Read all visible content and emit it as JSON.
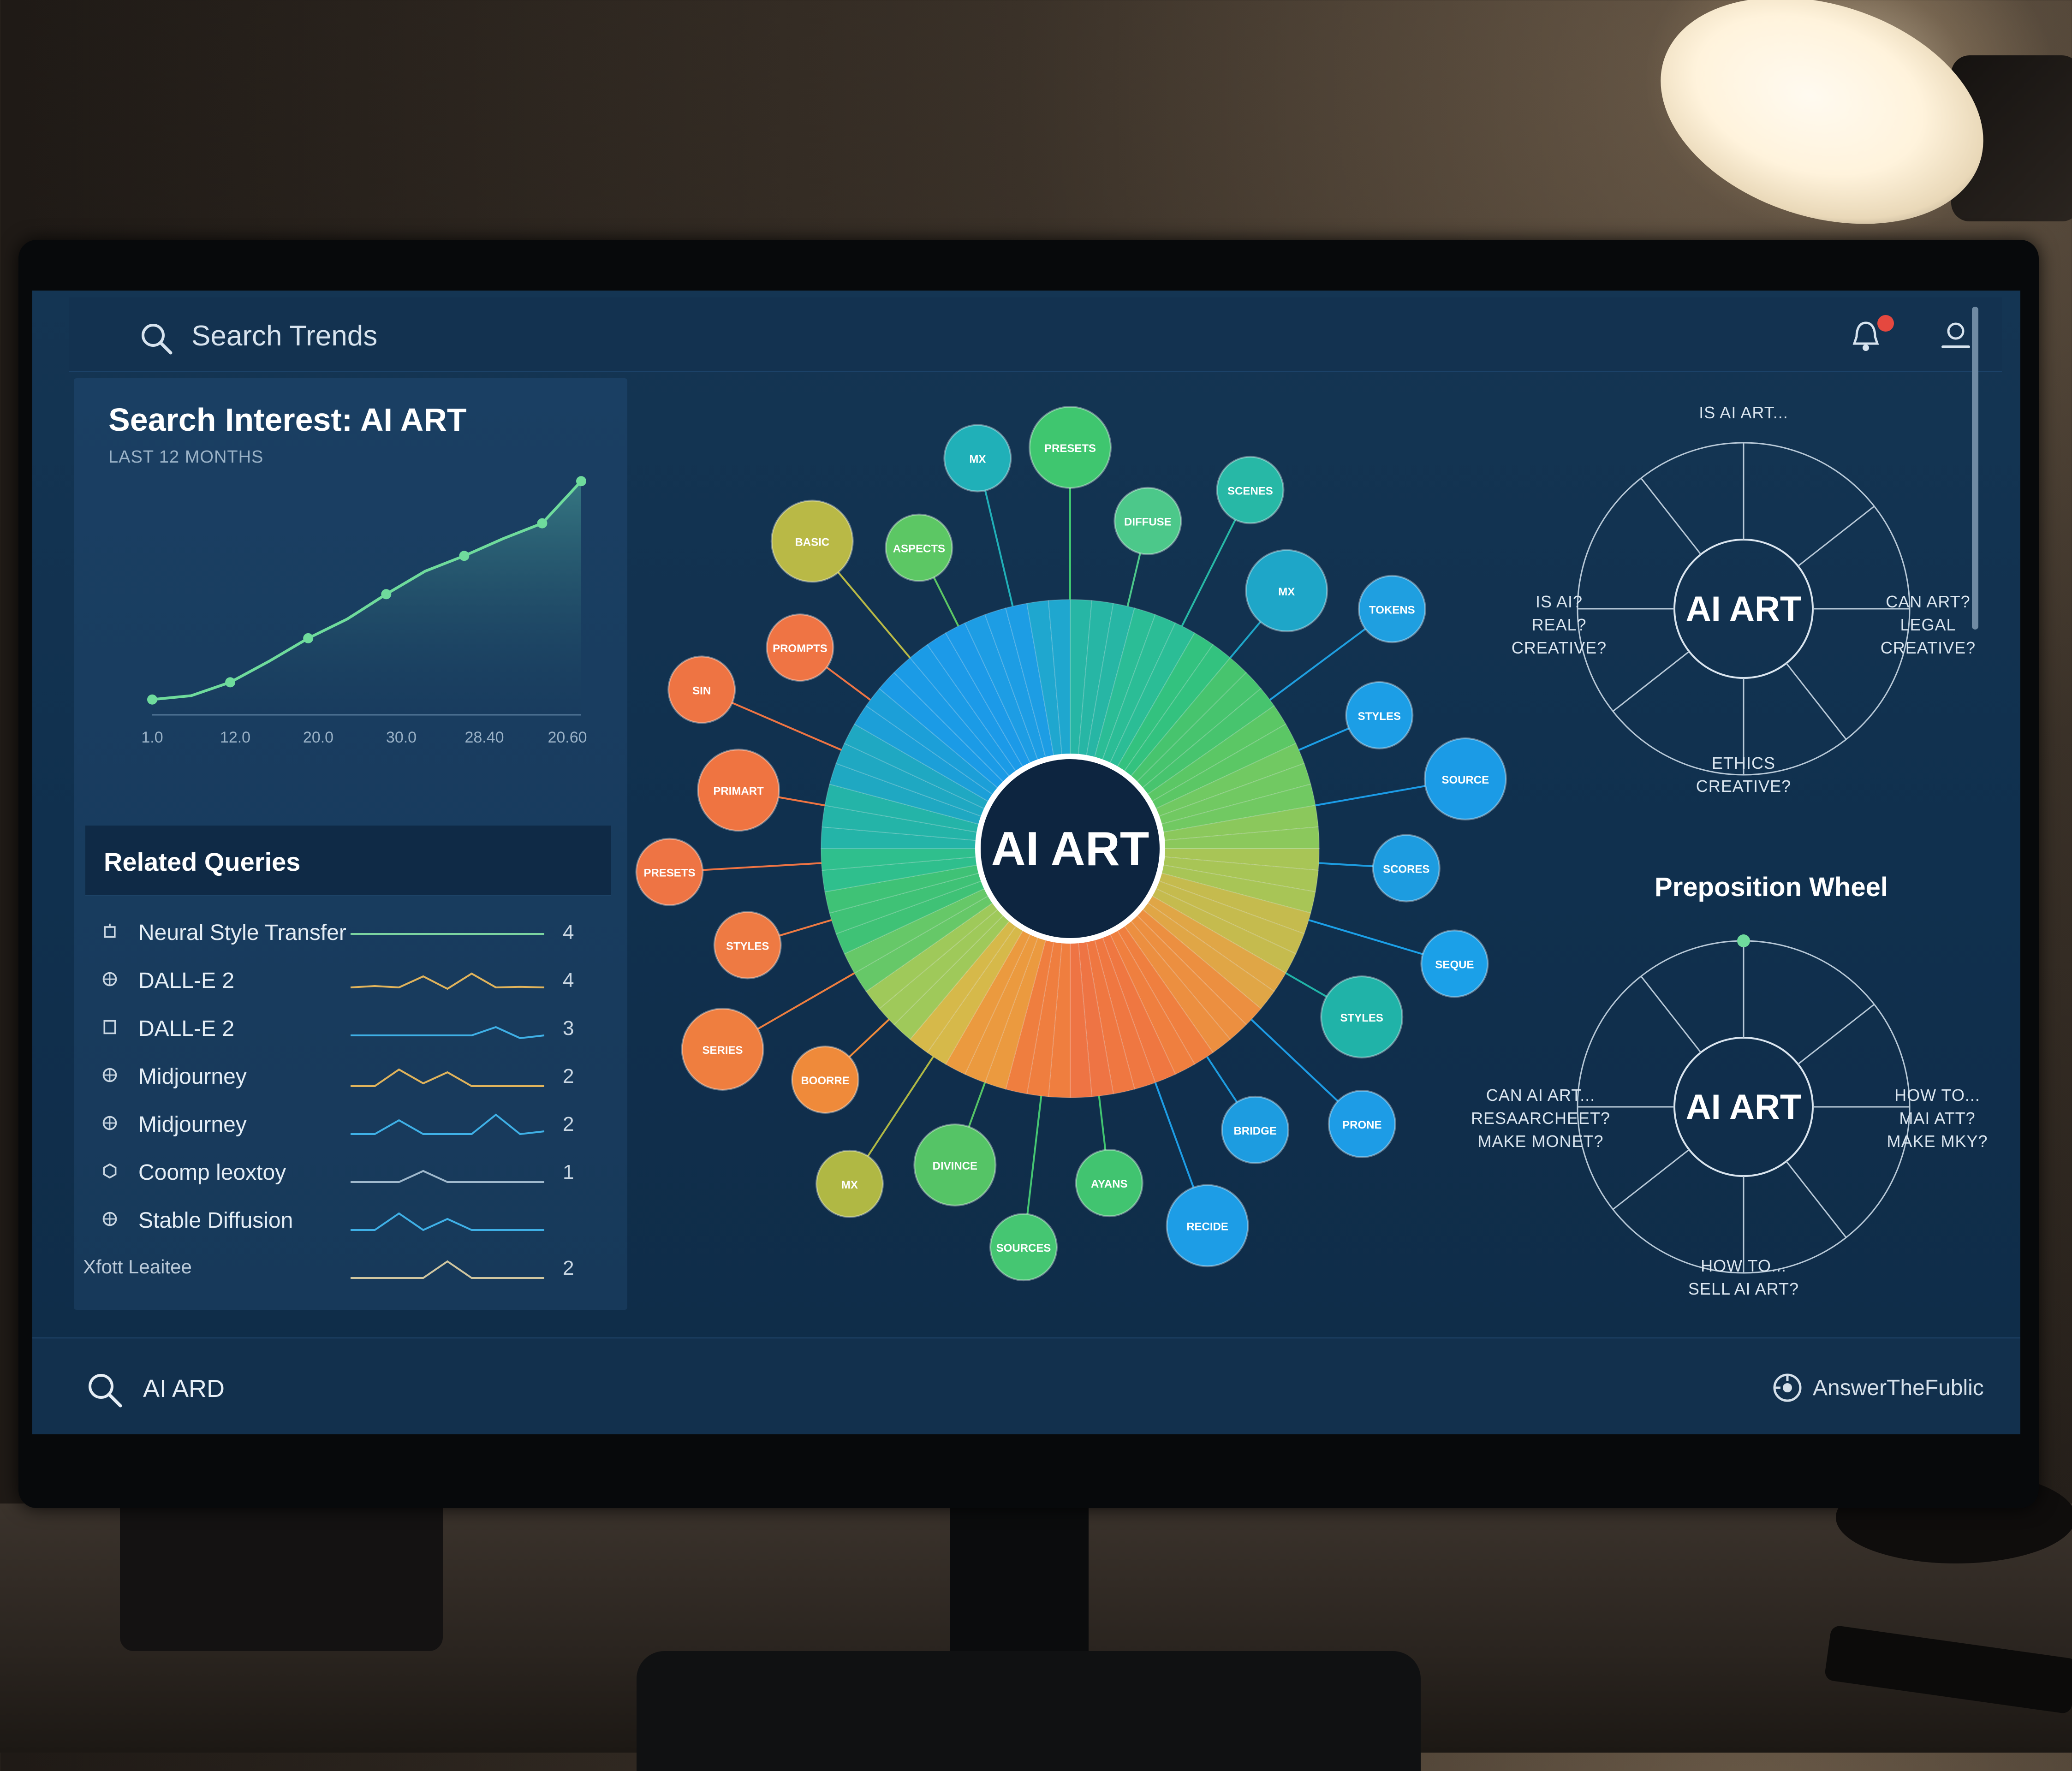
{
  "topbar": {
    "title": "Search Trends",
    "notification_icon": "bell-icon",
    "user_icon": "user-icon"
  },
  "interest_chart": {
    "title": "Search Interest: AI ART",
    "subtitle": "LAST 12 MONTHS"
  },
  "chart_data": {
    "type": "area",
    "title": "Search Interest: AI ART",
    "subtitle": "LAST 12 MONTHS",
    "xlabel": "",
    "ylabel": "",
    "x_tick_labels": [
      "1.0",
      "12.0",
      "20.0",
      "30.0",
      "28.40",
      "20.60"
    ],
    "x": [
      0,
      1,
      2,
      3,
      4,
      5,
      6,
      7,
      8,
      9,
      10,
      11
    ],
    "values": [
      8,
      10,
      17,
      28,
      40,
      50,
      63,
      75,
      83,
      92,
      100,
      122
    ],
    "ylim": [
      0,
      130
    ],
    "grid": false,
    "legend": "none",
    "line_color": "#6fdb9c"
  },
  "related_queries": {
    "title": "Related Queries",
    "items": [
      {
        "label": "Neural Style Transfer",
        "value": "4",
        "icon": "building-icon",
        "spark_color": "#7bd3a0",
        "spark": [
          0.5,
          0.5,
          0.5,
          0.5,
          0.5,
          0.5,
          0.5,
          0.5
        ]
      },
      {
        "label": "DALL-E 2",
        "value": "4",
        "icon": "globe-icon",
        "spark_color": "#e0b35b",
        "spark": [
          0.3,
          0.35,
          0.3,
          0.7,
          0.25,
          0.8,
          0.3,
          0.32,
          0.3
        ]
      },
      {
        "label": "DALL-E 2",
        "value": "3",
        "icon": "square-icon",
        "spark_color": "#3fb0e6",
        "spark": [
          0.3,
          0.3,
          0.3,
          0.3,
          0.3,
          0.3,
          0.6,
          0.2,
          0.3
        ]
      },
      {
        "label": "Midjourney",
        "value": "2",
        "icon": "globe-icon",
        "spark_color": "#e0b35b",
        "spark": [
          0.2,
          0.2,
          0.8,
          0.3,
          0.7,
          0.2,
          0.2,
          0.2,
          0.2
        ]
      },
      {
        "label": "Midjourney",
        "value": "2",
        "icon": "globe-icon",
        "spark_color": "#3fb0e6",
        "spark": [
          0.2,
          0.2,
          0.7,
          0.2,
          0.2,
          0.2,
          0.9,
          0.2,
          0.3
        ]
      },
      {
        "label": "Coomp leoxtoy",
        "value": "1",
        "icon": "hex-icon",
        "spark_color": "#9fb8cc",
        "spark": [
          0.2,
          0.2,
          0.2,
          0.6,
          0.2,
          0.2,
          0.2,
          0.2,
          0.2
        ]
      },
      {
        "label": "Stable Diffusion",
        "value": "",
        "icon": "globe-icon",
        "spark_color": "#3fb0e6",
        "spark": [
          0.2,
          0.2,
          0.8,
          0.2,
          0.6,
          0.2,
          0.2,
          0.2,
          0.2
        ]
      },
      {
        "label": "Xfott Leaitee",
        "value": "2",
        "icon": "",
        "spark_color": "#d0c6a0",
        "spark": [
          0.2,
          0.2,
          0.2,
          0.2,
          0.8,
          0.2,
          0.2,
          0.2,
          0.2
        ]
      }
    ]
  },
  "wheel": {
    "center_label": "AI ART",
    "bubbles": [
      {
        "label": "PRESETS",
        "color": "#3fc66f"
      },
      {
        "label": "DIFFUSE",
        "color": "#4cc88a"
      },
      {
        "label": "SCENES",
        "color": "#27b8a6"
      },
      {
        "label": "MX",
        "color": "#1ea6c8"
      },
      {
        "label": "TOKENS",
        "color": "#1f9fe0"
      },
      {
        "label": "STYLES",
        "color": "#1c9ee6"
      },
      {
        "label": "SOURCE",
        "color": "#1b9be6"
      },
      {
        "label": "SCORES",
        "color": "#1d9ce0"
      },
      {
        "label": "SEQUE",
        "color": "#1ba0e8"
      },
      {
        "label": "STYLES",
        "color": "#20b3a8"
      },
      {
        "label": "PRONE",
        "color": "#1d9ce6"
      },
      {
        "label": "BRIDGE",
        "color": "#1d9ce0"
      },
      {
        "label": "RECIDE",
        "color": "#1d9de6"
      },
      {
        "label": "AYANS",
        "color": "#41c470"
      },
      {
        "label": "SOURCES",
        "color": "#45c672"
      },
      {
        "label": "DIVINCE",
        "color": "#55c466"
      },
      {
        "label": "MX",
        "color": "#b0b844"
      },
      {
        "label": "BOORRE",
        "color": "#ef8a3a"
      },
      {
        "label": "SERIES",
        "color": "#ef7e3f"
      },
      {
        "label": "STYLES",
        "color": "#ee7a43"
      },
      {
        "label": "PRESETS",
        "color": "#ee7444"
      },
      {
        "label": "PRIMART",
        "color": "#ef7441"
      },
      {
        "label": "SIN",
        "color": "#ee7443"
      },
      {
        "label": "PROMPTS",
        "color": "#ef7444"
      },
      {
        "label": "BASIC",
        "color": "#b9b946"
      },
      {
        "label": "ASPECTS",
        "color": "#5cc764"
      },
      {
        "label": "MX",
        "color": "#20b0b8"
      }
    ]
  },
  "question_wheel_1": {
    "center_label": "AI ART",
    "top": "IS AI ART...",
    "left": [
      "IS AI?",
      "REAL?",
      "CREATIVE?"
    ],
    "right": [
      "CAN ART?",
      "LEGAL",
      "CREATIVE?"
    ],
    "bottom": [
      "ETHICS",
      "CREATIVE?"
    ]
  },
  "preposition_wheel": {
    "title": "Preposition Wheel",
    "center_label": "AI ART",
    "left": [
      "CAN AI ART...",
      "RESAARCHEET?",
      "MAKE MONET?"
    ],
    "right": [
      "HOW TO...",
      "MAI ATT?",
      "MAKE MKY?"
    ],
    "bottom": [
      "HOW TO...",
      "SELL AI ART?"
    ]
  },
  "bottombar": {
    "query": "AI ARD",
    "brand": "AnswerTheFublic"
  }
}
